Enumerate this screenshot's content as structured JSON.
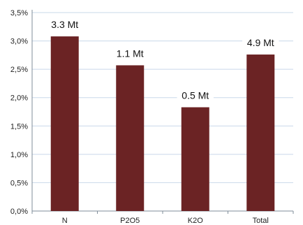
{
  "chart_data": {
    "type": "bar",
    "categories": [
      "N",
      "P2O5",
      "K2O",
      "Total"
    ],
    "values": [
      3.08,
      2.57,
      1.83,
      2.76
    ],
    "data_labels": [
      "3.3 Mt",
      "1.1 Mt",
      "0.5 Mt",
      "4.9 Mt"
    ],
    "y_tick_labels": [
      "0,0%",
      "0,5%",
      "1,0%",
      "1,5%",
      "2,0%",
      "2,5%",
      "3,0%",
      "3,5%"
    ],
    "ylim": [
      0,
      3.5
    ],
    "y_unit": "%",
    "grid": true,
    "legend": "none",
    "title": "",
    "xlabel": "",
    "ylabel": "",
    "colors": {
      "bar": "#6b2324",
      "grid": "#c9d8ea",
      "axis": "#7f8c99",
      "text": "#1f1f1f"
    }
  }
}
